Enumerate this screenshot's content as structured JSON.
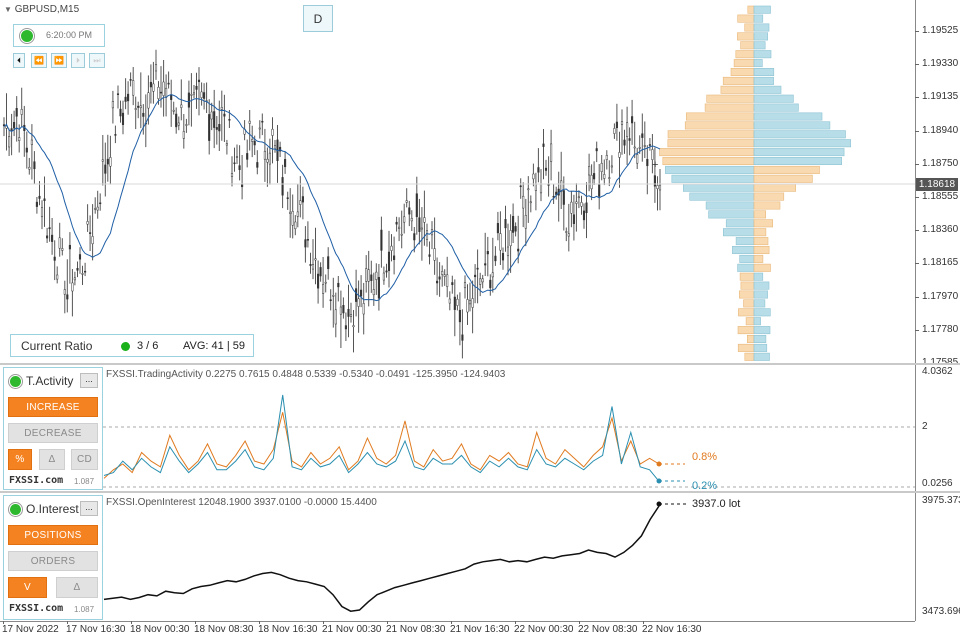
{
  "symbol": "GBPUSD,M15",
  "d_button": "D",
  "clock": {
    "time": "6:20:00 PM"
  },
  "nav": {
    "first": "⏴",
    "rewind": "⏪",
    "fforward": "⏩",
    "play": "⏵",
    "last": "⏭"
  },
  "main": {
    "price_ticks": [
      "1.19525",
      "1.19330",
      "1.19135",
      "1.18940",
      "1.18750",
      "1.18555",
      "1.18360",
      "1.18165",
      "1.17970",
      "1.17780",
      "1.17585"
    ],
    "current_price": "1.18618",
    "current_ratio": {
      "label": "Current Ratio",
      "count": "3 / 6",
      "avg": "AVG: 41 | 59"
    }
  },
  "activity": {
    "title": "FXSSI.TradingActivity 0.2275 0.7615 0.4848 0.5339 -0.5340 -0.0491 -125.3950 -124.9403",
    "panel_title": "T.Activity",
    "min_button": "...",
    "increase": "INCREASE",
    "decrease": "DECREASE",
    "pct": "%",
    "delta": "Δ",
    "cd": "CD",
    "brand": "FXSSI.com",
    "version": "1.087",
    "ticks": [
      "4.0362",
      "2",
      "0.0256"
    ],
    "label_orange": "0.8%",
    "label_blue": "0.2%"
  },
  "interest": {
    "title": "FXSSI.OpenInterest 12048.1900 3937.0100 -0.0000 15.4400",
    "panel_title": "O.Interest",
    "min_button": "...",
    "positions": "POSITIONS",
    "orders": "ORDERS",
    "v": "V",
    "delta": "Δ",
    "brand": "FXSSI.com",
    "version": "1.087",
    "ticks": [
      "3975.3735",
      "3473.6965"
    ],
    "lot_label": "3937.0 lot"
  },
  "x_ticks": [
    "17 Nov 2022",
    "17 Nov 16:30",
    "18 Nov 00:30",
    "18 Nov 08:30",
    "18 Nov 16:30",
    "21 Nov 00:30",
    "21 Nov 08:30",
    "21 Nov 16:30",
    "22 Nov 00:30",
    "22 Nov 08:30",
    "22 Nov 16:30"
  ],
  "colors": {
    "accent": "#f58220",
    "ma_line": "#1f5fa6",
    "profile_orange": "#f9d9b0",
    "profile_blue": "#b7dde8",
    "activity_orange": "#e07a1f",
    "activity_blue": "#2a8fb0"
  },
  "chart_data": [
    {
      "type": "line",
      "title": "GBPUSD,M15",
      "series": [
        {
          "name": "",
          "values": [
            1.189,
            1.1895,
            1.186,
            1.183,
            1.18,
            1.181,
            1.185,
            1.189,
            1.191,
            1.1905,
            1.1915,
            1.19,
            1.1895,
            1.1905,
            1.189,
            1.187,
            1.188,
            1.188,
            1.186,
            1.184,
            1.1815,
            1.18,
            1.1785,
            1.179,
            1.181,
            1.183,
            1.184,
            1.1825,
            1.18,
            1.178,
            1.179,
            1.181,
            1.1825,
            1.184,
            1.186,
            1.1865,
            1.184,
            1.185,
            1.1865,
            1.188,
            1.189,
            1.187,
            1.1862
          ]
        }
      ],
      "ylim": [
        1.1755,
        1.1962
      ],
      "current": 1.18618
    },
    {
      "type": "line",
      "title": "FXSSI.TradingActivity",
      "ylim": [
        0,
        4.0362
      ],
      "series": [
        {
          "name": "",
          "values": [
            0.3,
            0.6,
            0.8,
            0.5,
            1.2,
            0.9,
            0.7,
            1.8,
            1.1,
            0.6,
            0.9,
            1.5,
            0.8,
            0.7,
            1.1,
            1.6,
            0.9,
            0.8,
            1.3,
            2.6,
            0.9,
            0.7,
            1.2,
            0.8,
            1.0,
            1.4,
            0.6,
            0.9,
            1.7,
            1.0,
            0.8,
            1.1,
            2.3,
            0.9,
            0.7,
            1.3,
            0.9,
            1.0,
            1.5,
            0.8,
            0.6,
            1.1,
            0.9,
            1.2,
            0.8,
            0.7,
            1.9,
            1.0,
            0.8,
            1.3,
            1.0,
            0.7,
            1.1,
            1.4,
            2.4,
            0.9,
            1.6,
            0.8,
            1.0,
            0.8
          ]
        },
        {
          "name": "",
          "values": [
            0.4,
            0.5,
            0.9,
            0.6,
            1.0,
            0.7,
            0.5,
            1.4,
            0.9,
            0.5,
            0.8,
            1.2,
            0.6,
            0.6,
            0.9,
            1.3,
            0.7,
            0.6,
            1.0,
            3.2,
            0.7,
            0.6,
            1.0,
            0.7,
            0.8,
            1.1,
            0.5,
            0.8,
            1.2,
            0.8,
            0.7,
            0.9,
            1.6,
            0.7,
            0.6,
            1.0,
            0.8,
            0.8,
            1.1,
            0.7,
            0.5,
            0.9,
            0.7,
            1.0,
            0.7,
            0.6,
            1.3,
            0.8,
            0.7,
            1.0,
            0.8,
            0.6,
            0.9,
            1.1,
            2.8,
            0.8,
            1.9,
            0.7,
            0.6,
            0.2
          ]
        }
      ]
    },
    {
      "type": "line",
      "title": "FXSSI.OpenInterest",
      "ylim": [
        3473.6965,
        3975.3735
      ],
      "series": [
        {
          "name": "",
          "values": [
            3540,
            3545,
            3550,
            3540,
            3548,
            3560,
            3555,
            3575,
            3568,
            3565,
            3585,
            3595,
            3600,
            3610,
            3620,
            3615,
            3625,
            3640,
            3650,
            3655,
            3645,
            3630,
            3620,
            3615,
            3605,
            3595,
            3560,
            3510,
            3490,
            3495,
            3530,
            3560,
            3575,
            3590,
            3600,
            3610,
            3620,
            3630,
            3640,
            3650,
            3660,
            3670,
            3690,
            3700,
            3705,
            3710,
            3700,
            3705,
            3700,
            3710,
            3720,
            3715,
            3725,
            3730,
            3735,
            3750,
            3740,
            3735,
            3720,
            3740,
            3770,
            3810,
            3880,
            3937
          ]
        }
      ]
    }
  ]
}
